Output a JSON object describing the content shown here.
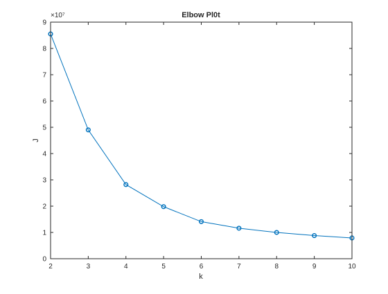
{
  "chart_data": {
    "type": "line",
    "title": "Elbow Pl0t",
    "xlabel": "k",
    "ylabel": "J",
    "exponent_label": "×10⁷",
    "x": [
      2,
      3,
      4,
      5,
      6,
      7,
      8,
      9,
      10
    ],
    "series": [
      {
        "values": [
          85500000,
          49000000,
          28200000,
          19800000,
          14100000,
          11600000,
          10000000,
          8800000,
          7900000
        ],
        "color": "#0072bd",
        "marker": "circle"
      }
    ],
    "xlim": [
      2,
      10
    ],
    "ylim": [
      0,
      90000000
    ],
    "x_ticks": [
      "2",
      "3",
      "4",
      "5",
      "6",
      "7",
      "8",
      "9",
      "10"
    ],
    "y_ticks": [
      "0",
      "1",
      "2",
      "3",
      "4",
      "5",
      "6",
      "7",
      "8",
      "9"
    ],
    "grid": false,
    "legend": "none"
  }
}
